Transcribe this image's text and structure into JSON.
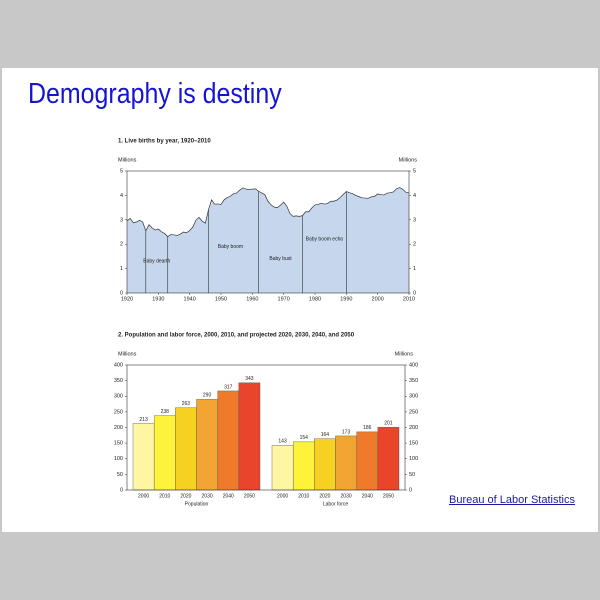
{
  "slide": {
    "title": "Demography is destiny",
    "link": "Bureau of Labor Statistics"
  },
  "chart_data": [
    {
      "type": "area",
      "title": "1. Live births by year, 1920–2010",
      "y_label": "Millions",
      "y2_label": "Millions",
      "x": [
        1920,
        1921,
        1922,
        1923,
        1924,
        1925,
        1926,
        1927,
        1928,
        1929,
        1930,
        1931,
        1932,
        1933,
        1934,
        1935,
        1936,
        1937,
        1938,
        1939,
        1940,
        1941,
        1942,
        1943,
        1944,
        1945,
        1946,
        1947,
        1948,
        1949,
        1950,
        1951,
        1952,
        1953,
        1954,
        1955,
        1956,
        1957,
        1958,
        1959,
        1960,
        1961,
        1962,
        1963,
        1964,
        1965,
        1966,
        1967,
        1968,
        1969,
        1970,
        1971,
        1972,
        1973,
        1974,
        1975,
        1976,
        1977,
        1978,
        1979,
        1980,
        1981,
        1982,
        1983,
        1984,
        1985,
        1986,
        1987,
        1988,
        1989,
        1990,
        1991,
        1992,
        1993,
        1994,
        1995,
        1996,
        1997,
        1998,
        1999,
        2000,
        2001,
        2002,
        2003,
        2004,
        2005,
        2006,
        2007,
        2008,
        2009,
        2010
      ],
      "values": [
        2.95,
        3.06,
        2.88,
        2.91,
        2.98,
        2.91,
        2.55,
        2.8,
        2.67,
        2.58,
        2.62,
        2.51,
        2.44,
        2.31,
        2.4,
        2.38,
        2.36,
        2.41,
        2.5,
        2.47,
        2.56,
        2.7,
        2.99,
        3.1,
        2.94,
        2.86,
        3.41,
        3.82,
        3.64,
        3.65,
        3.63,
        3.82,
        3.91,
        3.97,
        4.07,
        4.1,
        4.22,
        4.31,
        4.26,
        4.24,
        4.26,
        4.27,
        4.17,
        4.1,
        4.03,
        3.76,
        3.61,
        3.52,
        3.5,
        3.6,
        3.73,
        3.56,
        3.26,
        3.14,
        3.16,
        3.14,
        3.17,
        3.33,
        3.33,
        3.49,
        3.61,
        3.63,
        3.68,
        3.64,
        3.67,
        3.76,
        3.76,
        3.81,
        3.91,
        4.04,
        4.16,
        4.11,
        4.07,
        4.0,
        3.95,
        3.9,
        3.89,
        3.88,
        3.94,
        3.96,
        4.06,
        4.03,
        4.02,
        4.09,
        4.11,
        4.14,
        4.27,
        4.32,
        4.25,
        4.13,
        4.1
      ],
      "color": "#c6d6ec",
      "line_color": "#333333",
      "dividers": [
        1926,
        1933,
        1946,
        1962,
        1976,
        1990
      ],
      "annotations": [
        {
          "text": "Baby dearth",
          "x": 1929.5,
          "y": 1.3
        },
        {
          "text": "Baby boom",
          "x": 1953,
          "y": 1.9
        },
        {
          "text": "Baby bust",
          "x": 1969,
          "y": 1.4
        },
        {
          "text": "Baby boom echo",
          "x": 1983,
          "y": 2.2
        }
      ],
      "xlim": [
        1920,
        2010
      ],
      "xticks": [
        1920,
        1930,
        1940,
        1950,
        1960,
        1970,
        1980,
        1990,
        2000,
        2010
      ],
      "ylim": [
        0,
        5
      ],
      "yticks": [
        0,
        1,
        2,
        3,
        4,
        5
      ],
      "y2lim": [
        0,
        5
      ],
      "y2ticks": [
        0,
        1,
        2,
        3,
        4,
        5
      ]
    },
    {
      "type": "grouped_bar",
      "title": "2. Population and labor force, 2000, 2010, and projected 2020, 2030, 2040, and 2050",
      "y_label": "Millions",
      "y2_label": "Millions",
      "colors": [
        "#fff6a3",
        "#fff23a",
        "#f7d11f",
        "#f2a532",
        "#ef7a2c",
        "#e8452b"
      ],
      "groups": [
        {
          "name": "Population",
          "categories": [
            "2000",
            "2010",
            "2020",
            "2030",
            "2040",
            "2050"
          ],
          "values": [
            213,
            238,
            263,
            290,
            317,
            343
          ]
        },
        {
          "name": "Labor force",
          "categories": [
            "2000",
            "2010",
            "2020",
            "2030",
            "2040",
            "2050"
          ],
          "values": [
            143,
            154,
            164,
            173,
            186,
            201
          ]
        }
      ],
      "ylim": [
        0,
        400
      ],
      "yticks": [
        0,
        50,
        100,
        150,
        200,
        250,
        300,
        350,
        400
      ],
      "y2lim": [
        0,
        400
      ],
      "y2ticks": [
        0,
        50,
        100,
        150,
        200,
        250,
        300,
        350,
        400
      ]
    }
  ]
}
